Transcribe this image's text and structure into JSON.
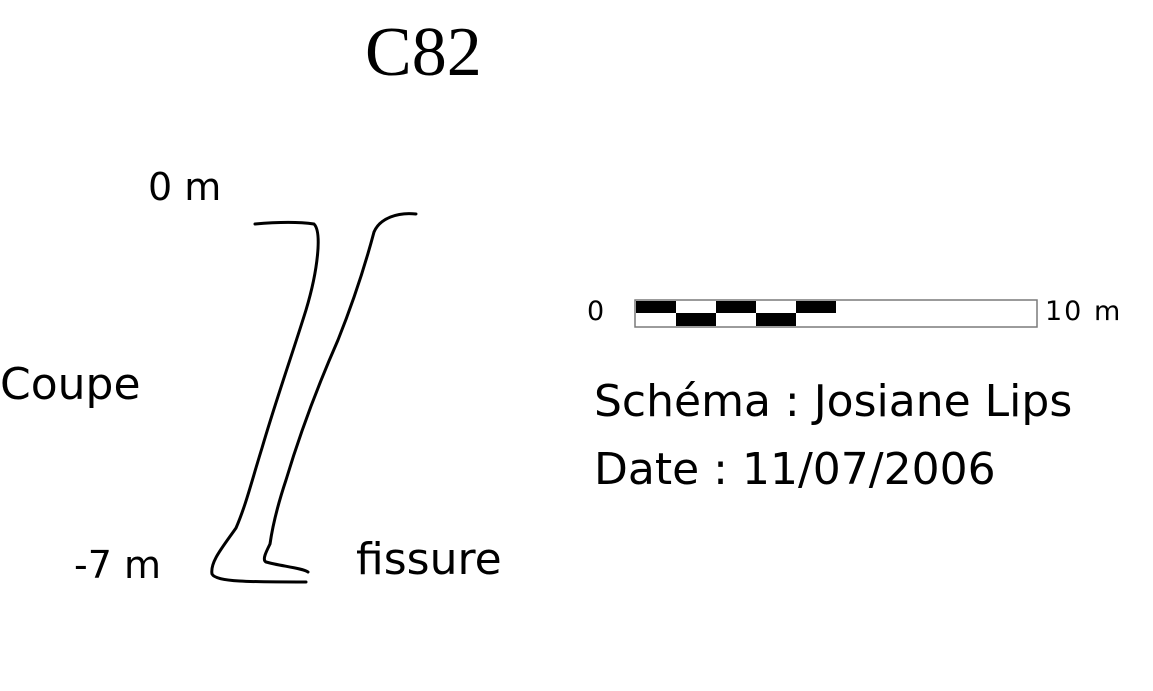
{
  "title": "C82",
  "depth": {
    "top": "0 m",
    "bottom": "-7 m"
  },
  "view_label": "Coupe",
  "feature_label": "fissure",
  "scale_bar": {
    "start": "0",
    "end": "10 m"
  },
  "credits": {
    "author": "Schéma : Josiane Lips",
    "date": "Date : 11/07/2006"
  }
}
